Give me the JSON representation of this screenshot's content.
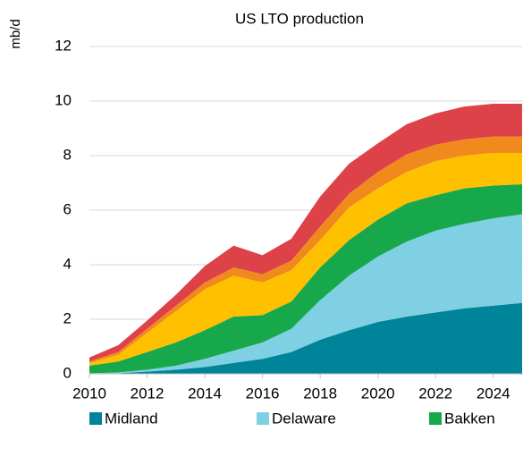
{
  "chart_data": {
    "type": "stacked_area",
    "title": "US LTO production",
    "y_label": "mb/d",
    "x": [
      2010,
      2011,
      2012,
      2013,
      2014,
      2015,
      2016,
      2017,
      2018,
      2019,
      2020,
      2021,
      2022,
      2023,
      2024,
      2025
    ],
    "series": [
      {
        "name": "Midland",
        "color": "#00849a",
        "values": [
          0,
          0.02,
          0.08,
          0.15,
          0.25,
          0.4,
          0.55,
          0.8,
          1.25,
          1.6,
          1.9,
          2.1,
          2.25,
          2.4,
          2.5,
          2.6
        ]
      },
      {
        "name": "Delaware",
        "color": "#7fd0e3",
        "values": [
          0.02,
          0.03,
          0.07,
          0.15,
          0.3,
          0.45,
          0.6,
          0.85,
          1.45,
          2.0,
          2.4,
          2.75,
          3.0,
          3.1,
          3.2,
          3.25
        ]
      },
      {
        "name": "Bakken",
        "color": "#17a84b",
        "values": [
          0.28,
          0.4,
          0.65,
          0.85,
          1.05,
          1.25,
          1.0,
          1.0,
          1.2,
          1.3,
          1.35,
          1.4,
          1.3,
          1.3,
          1.2,
          1.1
        ]
      },
      {
        "color": "#ffc000",
        "values": [
          0.1,
          0.25,
          0.7,
          1.15,
          1.5,
          1.5,
          1.2,
          1.15,
          1.0,
          1.2,
          1.15,
          1.15,
          1.25,
          1.2,
          1.2,
          1.15
        ]
      },
      {
        "color": "#f08a1d",
        "values": [
          0.05,
          0.1,
          0.15,
          0.2,
          0.25,
          0.3,
          0.3,
          0.35,
          0.5,
          0.5,
          0.6,
          0.65,
          0.6,
          0.6,
          0.6,
          0.6
        ]
      },
      {
        "color": "#dc4248",
        "values": [
          0.15,
          0.25,
          0.3,
          0.4,
          0.6,
          0.8,
          0.7,
          0.8,
          1.1,
          1.1,
          1.05,
          1.1,
          1.15,
          1.2,
          1.2,
          1.2
        ]
      }
    ],
    "xlim": [
      2010,
      2025
    ],
    "xticks": [
      2010,
      2012,
      2014,
      2016,
      2018,
      2020,
      2022,
      2024
    ],
    "ylim": [
      0,
      12
    ],
    "yticks": [
      0,
      2,
      4,
      6,
      8,
      10,
      12
    ],
    "grid": true,
    "legend": "bottom"
  }
}
